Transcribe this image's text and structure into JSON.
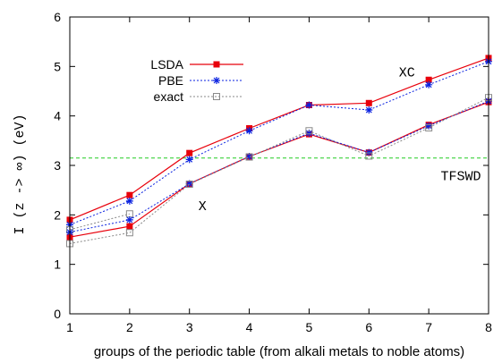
{
  "chart_data": {
    "type": "line",
    "xlabel": "groups of the periodic table (from alkali metals to noble atoms)",
    "ylabel": "I  (z -> ∞)  (eV)",
    "xlim": [
      1,
      8
    ],
    "ylim": [
      0,
      6
    ],
    "x_ticks": [
      1,
      2,
      3,
      4,
      5,
      6,
      7,
      8
    ],
    "y_ticks": [
      0,
      1,
      2,
      3,
      4,
      5,
      6
    ],
    "grid": false,
    "legend_position": "top-left",
    "x": [
      1,
      2,
      3,
      4,
      5,
      6,
      7,
      8
    ],
    "series": [
      {
        "name": "LSDA",
        "group": "XC",
        "color": "#e8000b",
        "marker": "filled-square",
        "dash": "solid",
        "values": [
          1.9,
          2.4,
          3.25,
          3.75,
          4.22,
          4.26,
          4.73,
          5.17
        ]
      },
      {
        "name": "PBE",
        "group": "XC",
        "color": "#0a22e0",
        "marker": "star",
        "dash": "dotted",
        "values": [
          1.8,
          2.28,
          3.12,
          3.7,
          4.22,
          4.12,
          4.63,
          5.1
        ]
      },
      {
        "name": "exact",
        "group": "XC",
        "color": "#8a8a8a",
        "marker": "open-square",
        "dash": "dotted",
        "values": [
          1.7,
          2.02,
          null,
          null,
          null,
          null,
          null,
          null
        ]
      },
      {
        "name": "LSDA",
        "group": "X",
        "color": "#e8000b",
        "marker": "filled-square",
        "dash": "solid",
        "values": [
          1.55,
          1.77,
          2.63,
          3.18,
          3.63,
          3.26,
          3.82,
          4.28
        ]
      },
      {
        "name": "PBE",
        "group": "X",
        "color": "#0a22e0",
        "marker": "star",
        "dash": "dotted",
        "values": [
          1.65,
          1.9,
          2.63,
          3.18,
          3.65,
          3.26,
          3.8,
          4.3
        ]
      },
      {
        "name": "exact",
        "group": "X",
        "color": "#8a8a8a",
        "marker": "open-square",
        "dash": "dotted",
        "values": [
          1.42,
          1.64,
          2.62,
          3.17,
          3.7,
          3.19,
          3.76,
          4.37
        ]
      }
    ],
    "reference_line": {
      "label": "TFSWD",
      "y": 3.15,
      "color": "#22cc22",
      "dash": "dashed"
    },
    "annotations": [
      {
        "text": "XC",
        "x": 6.5,
        "y": 4.8
      },
      {
        "text": "X",
        "x": 3.15,
        "y": 2.1
      },
      {
        "text": "TFSWD",
        "x": 7.2,
        "y": 2.7
      }
    ],
    "legend": [
      "LSDA",
      "PBE",
      "exact"
    ]
  }
}
